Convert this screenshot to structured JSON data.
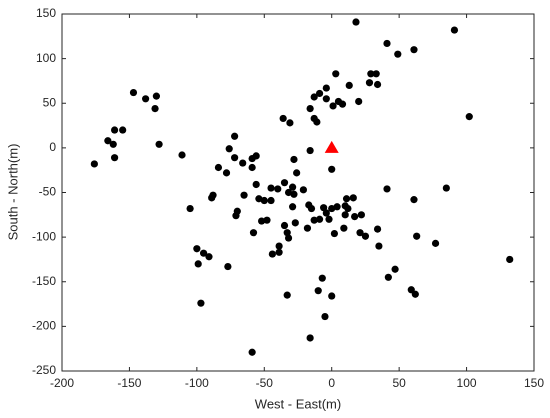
{
  "chart_data": {
    "type": "scatter",
    "x_label": "West - East(m)",
    "y_label": "South - North(m)",
    "xlim": [
      -200,
      150
    ],
    "xticks": [
      -200,
      -150,
      -100,
      -50,
      0,
      50,
      100,
      150
    ],
    "ylim": [
      -250,
      150
    ],
    "yticks": [
      -250,
      -200,
      -150,
      -100,
      -50,
      0,
      50,
      100,
      150
    ],
    "series": [
      {
        "color": "#000000",
        "marker": "circle",
        "x": [
          18,
          91,
          41,
          49,
          61,
          -147,
          -138,
          -130,
          -131,
          3,
          29,
          33,
          28,
          34,
          13,
          -4,
          -9,
          -13,
          -4,
          5,
          8,
          20,
          1,
          -16,
          -13,
          -11,
          -36,
          -31,
          102,
          -161,
          -155,
          -166,
          -162,
          -161,
          -176,
          -128,
          -111,
          -72,
          -76,
          -72,
          -66,
          -59,
          -56,
          -59,
          -84,
          -78,
          -28,
          -16,
          0,
          -26,
          -35,
          -29,
          -32,
          -28,
          -21,
          -45,
          -40,
          -56,
          -54,
          -45,
          -50,
          -65,
          -88,
          -89,
          -105,
          -70,
          -71,
          -52,
          -48,
          -58,
          -77,
          -100,
          -95,
          -91,
          -97,
          -99,
          -29,
          -17,
          -15,
          -6,
          -4,
          0,
          4,
          -2,
          10,
          11,
          16,
          10,
          12,
          9,
          22,
          17,
          -9,
          -13,
          -27,
          -35,
          -33,
          -18,
          -32,
          -39,
          -44,
          -39,
          2,
          21,
          25,
          34,
          35,
          41,
          85,
          61,
          63,
          77,
          42,
          47,
          59,
          62,
          132,
          -7,
          -10,
          -5,
          0,
          -33,
          -16,
          -59
        ],
        "y": [
          141,
          132,
          117,
          105,
          110,
          62,
          55,
          58,
          44,
          83,
          83,
          83,
          73,
          71,
          70,
          67,
          61,
          57,
          55,
          52,
          49,
          52,
          47,
          44,
          33,
          29,
          33,
          28,
          35,
          20,
          20,
          8,
          4,
          -11,
          -18,
          4,
          -8,
          13,
          -1,
          -11,
          -17,
          -12,
          -9,
          -22,
          -22,
          -28,
          -13,
          -3,
          -24,
          -28,
          -39,
          -44,
          -50,
          -52,
          -47,
          -45,
          -46,
          -41,
          -57,
          -59,
          -59,
          -53,
          -53,
          -56,
          -68,
          -71,
          -76,
          -82,
          -81,
          -95,
          -133,
          -113,
          -118,
          -122,
          -174,
          -130,
          -66,
          -64,
          -68,
          -67,
          -73,
          -68,
          -66,
          -80,
          -75,
          -57,
          -56,
          -65,
          -68,
          -90,
          -75,
          -77,
          -80,
          -81,
          -84,
          -87,
          -95,
          -90,
          -101,
          -110,
          -119,
          -117,
          -96,
          -95,
          -99,
          -91,
          -110,
          -46,
          -45,
          -58,
          -99,
          -107,
          -145,
          -136,
          -159,
          -164,
          -125,
          -146,
          -160,
          -189,
          -166,
          -165,
          -213,
          -229
        ]
      },
      {
        "color": "#ff0000",
        "marker": "triangle",
        "x": [
          0
        ],
        "y": [
          0
        ]
      }
    ]
  }
}
